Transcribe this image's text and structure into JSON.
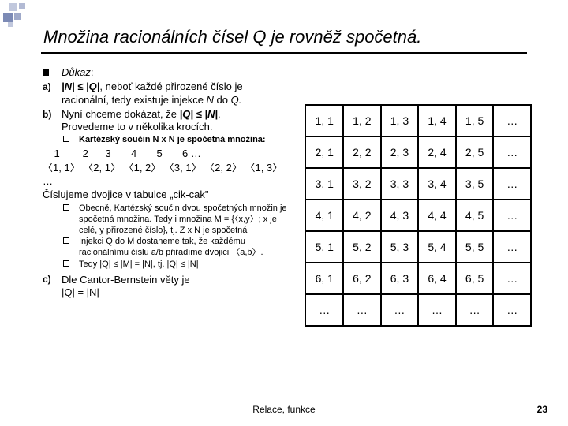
{
  "title": "Množina racionálních čísel Q je rovněž spočetná.",
  "proof": {
    "lead": "Důkaz",
    "a_marker": "a)",
    "a_text": "|N| ≤ |Q|, neboť každé přirozené číslo je racionální, tedy existuje injekce N do Q.",
    "a_prefix_bi": "|N| ≤ |Q|",
    "a_rest": ", neboť každé přirozené číslo je racionální, tedy existuje injekce ",
    "a_n": "N",
    "a_mid": " do ",
    "a_q": "Q.",
    "b_marker": "b)",
    "b_line1": "Nyní chceme dokázat, že ",
    "b_bi": "|Q| ≤ |N|",
    "b_suffix": ".",
    "b_line2": "Provedeme to v několika krocích.",
    "subhead_pre": "Kartézský součin ",
    "subhead_bi": "N x N",
    "subhead_post": " je spočetná množina:",
    "seq1_nums": "    1        2      3       4       5       6 …",
    "seq2": "〈1, 1〉 〈2, 1〉 〈1, 2〉 〈3, 1〉 〈2, 2〉 〈1, 3〉 …",
    "cik": "Číslujeme dvojice v tabulce „cik-cak\"",
    "sub1_a": "Obecně, Kartézský součin dvou spočetných množin je spočetná množina. Tedy i množina ",
    "sub1_m": "M",
    "sub1_b": " = {〈",
    "sub1_xy": "x,y",
    "sub1_c": "〉; ",
    "sub1_x": "x",
    "sub1_d": " je celé, ",
    "sub1_y": "y",
    "sub1_e": " přirozené číslo}, tj. ",
    "sub1_zn": "Z x N",
    "sub1_f": " je spočetná",
    "sub2_a": "Injekci Q do ",
    "sub2_m": "M",
    "sub2_b": " dostaneme tak, že každému racionálnímu číslu ",
    "sub2_ab": "a/b",
    "sub2_c": " přiřadíme dvojici 〈",
    "sub2_pair": "a,b",
    "sub2_d": "〉.",
    "sub3": "Tedy |Q| ≤ |M| = |N|, tj. |Q| ≤ |N|",
    "c_marker": "c)",
    "c_a": "Dle Cantor-Bernstein věty je",
    "c_b": "|Q| = |N|"
  },
  "table": {
    "rows": [
      [
        "1, 1",
        "1, 2",
        "1, 3",
        "1, 4",
        "1, 5",
        "…"
      ],
      [
        "2, 1",
        "2, 2",
        "2, 3",
        "2, 4",
        "2, 5",
        "…"
      ],
      [
        "3, 1",
        "3, 2",
        "3, 3",
        "3, 4",
        "3, 5",
        "…"
      ],
      [
        "4, 1",
        "4, 2",
        "4, 3",
        "4, 4",
        "4, 5",
        "…"
      ],
      [
        "5, 1",
        "5, 2",
        "5, 3",
        "5, 4",
        "5, 5",
        "…"
      ],
      [
        "6, 1",
        "6, 2",
        "6, 3",
        "6, 4",
        "6, 5",
        "…"
      ],
      [
        "…",
        "…",
        "…",
        "…",
        "…",
        "…"
      ]
    ]
  },
  "footer": {
    "center": "Relace, funkce",
    "page": "23"
  }
}
